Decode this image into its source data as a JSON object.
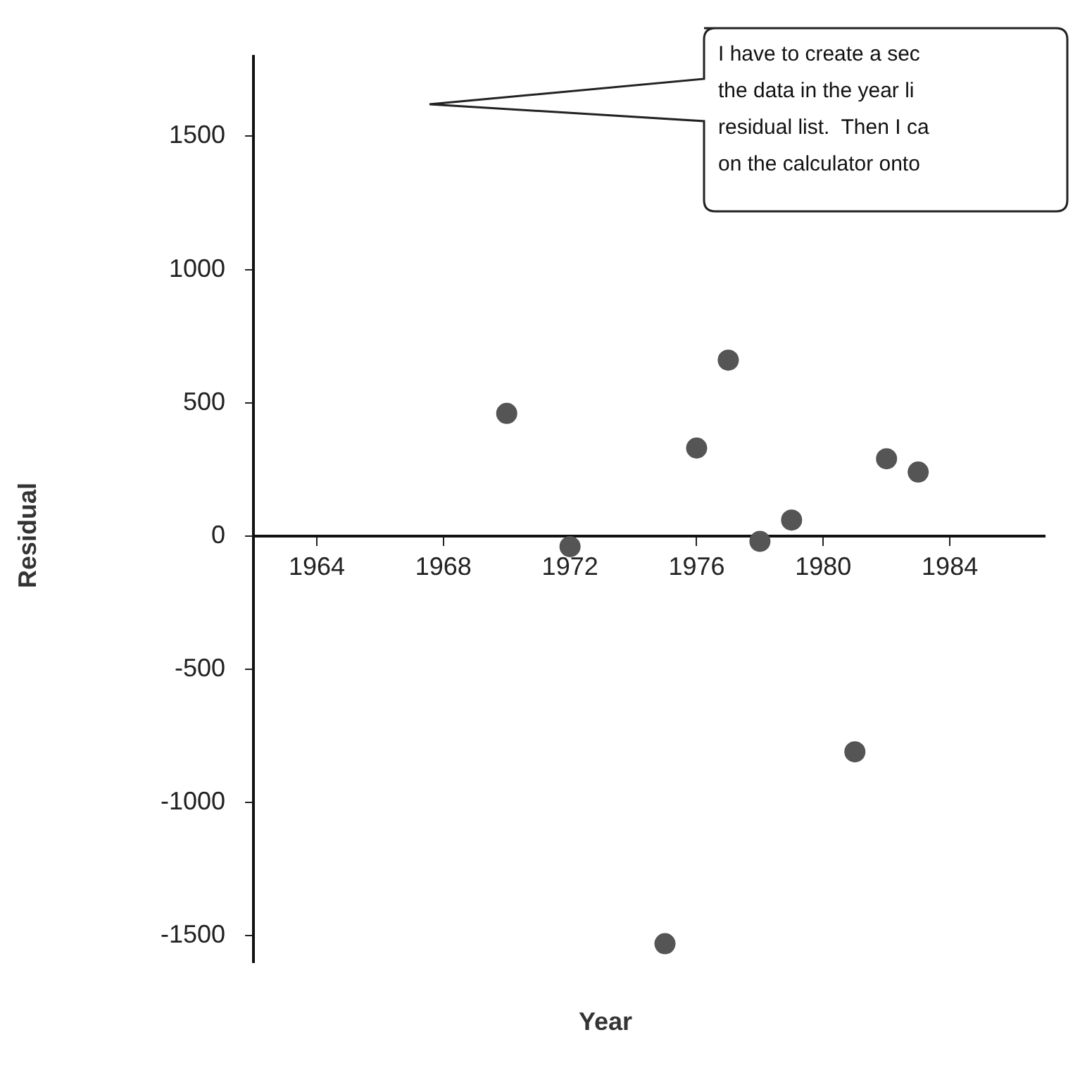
{
  "chart_data": {
    "type": "scatter",
    "xlabel": "Year",
    "ylabel": "Residual",
    "annotations": [
      "I have to create a sec\nthe data in the year li\nresidual list.  Then I ca\non the calculator onto"
    ],
    "x": [
      1970,
      1972,
      1975,
      1976,
      1977,
      1978,
      1979,
      1981,
      1982,
      1983
    ],
    "series": [
      {
        "color": "#555555",
        "values": [
          460,
          -40,
          -1530,
          330,
          660,
          -20,
          60,
          -810,
          290,
          240
        ]
      }
    ],
    "xlim": [
      1962,
      1987
    ],
    "xticks": [
      1964,
      1968,
      1972,
      1976,
      1980,
      1984
    ],
    "ylim": [
      -1600,
      1800
    ],
    "yticks": [
      -1500,
      -1000,
      -500,
      0,
      500,
      1000,
      1500
    ],
    "marker": "circle",
    "grid": false,
    "legend": false
  }
}
